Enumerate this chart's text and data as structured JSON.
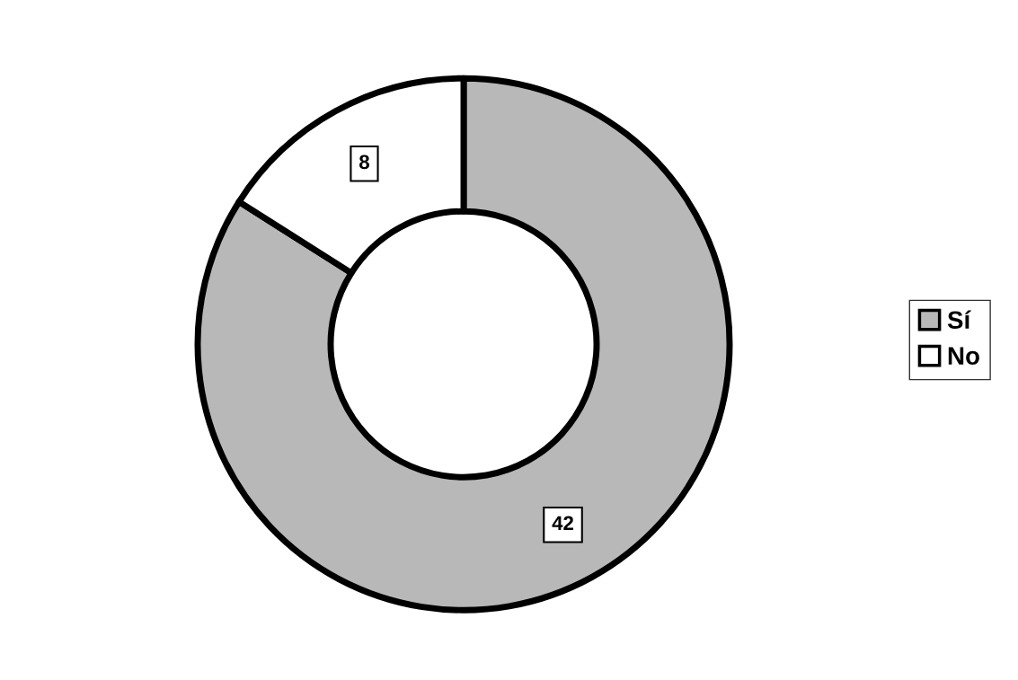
{
  "chart_data": {
    "type": "donut",
    "categories": [
      "Sí",
      "No"
    ],
    "values": [
      42,
      8
    ],
    "colors": [
      "#b8b8b8",
      "#ffffff"
    ],
    "data_labels": true,
    "legend": "right"
  }
}
